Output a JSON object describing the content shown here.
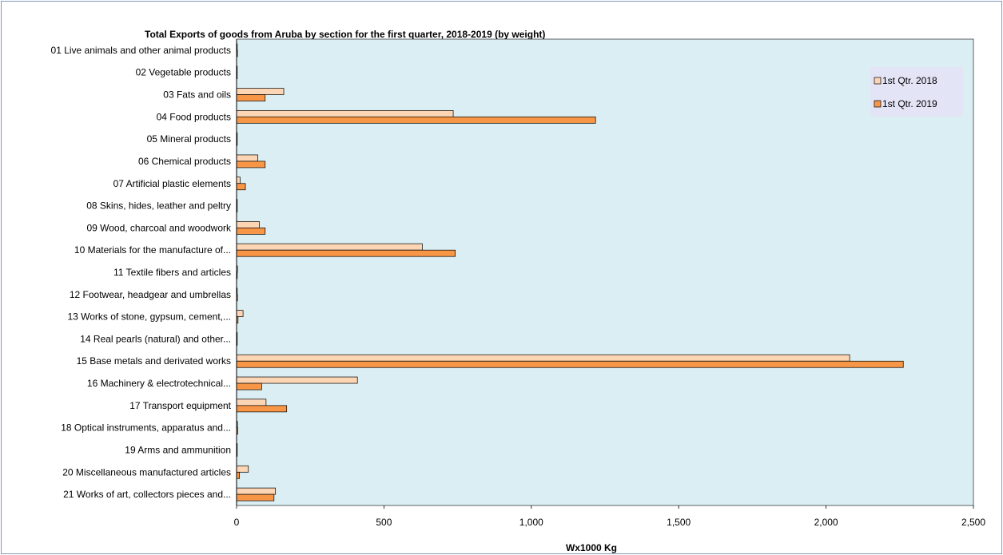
{
  "chart_data": {
    "type": "bar",
    "orientation": "horizontal",
    "title": "Total Exports of goods from Aruba by section for the first quarter, 2018-2019 (by weight)",
    "xlabel": "Wx1000 Kg",
    "ylabel": "",
    "xlim": [
      0,
      2500
    ],
    "xticks": [
      0,
      500,
      1000,
      1500,
      2000,
      2500
    ],
    "xtick_labels": [
      "0",
      "500",
      "1,000",
      "1,500",
      "2,000",
      "2,500"
    ],
    "grid": false,
    "legend_position": "top-right",
    "plot_background": "#daeef3",
    "categories": [
      "01 Live animals and other animal products",
      "02 Vegetable products",
      "03 Fats and oils",
      "04 Food products",
      "05 Mineral products",
      "06 Chemical products",
      "07 Artificial plastic elements",
      "08 Skins, hides, leather and peltry",
      "09 Wood, charcoal and woodwork",
      "10 Materials for the manufacture of...",
      "11 Textile fibers and articles",
      "12 Footwear, headgear and umbrellas",
      "13 Works of stone, gypsum, cement,...",
      "14 Real pearls (natural) and other...",
      "15 Base metals and derivated works",
      "16 Machinery & electrotechnical...",
      "17 Transport equipment",
      "18 Optical instruments, apparatus and...",
      "19 Arms and ammunition",
      "20 Miscellaneous manufactured articles",
      "21 Works of art, collectors pieces and..."
    ],
    "series": [
      {
        "name": "1st Qtr. 2018",
        "color": "#fcd5b5",
        "values": [
          2,
          1,
          160,
          735,
          1,
          72,
          12,
          2,
          77,
          630,
          3,
          2,
          22,
          1,
          2080,
          410,
          100,
          3,
          1,
          40,
          132
        ]
      },
      {
        "name": "1st Qtr. 2019",
        "color": "#f79646",
        "values": [
          3,
          1,
          97,
          1218,
          1,
          97,
          30,
          1,
          97,
          742,
          2,
          3,
          5,
          2,
          2262,
          85,
          170,
          4,
          2,
          10,
          127
        ]
      }
    ]
  }
}
